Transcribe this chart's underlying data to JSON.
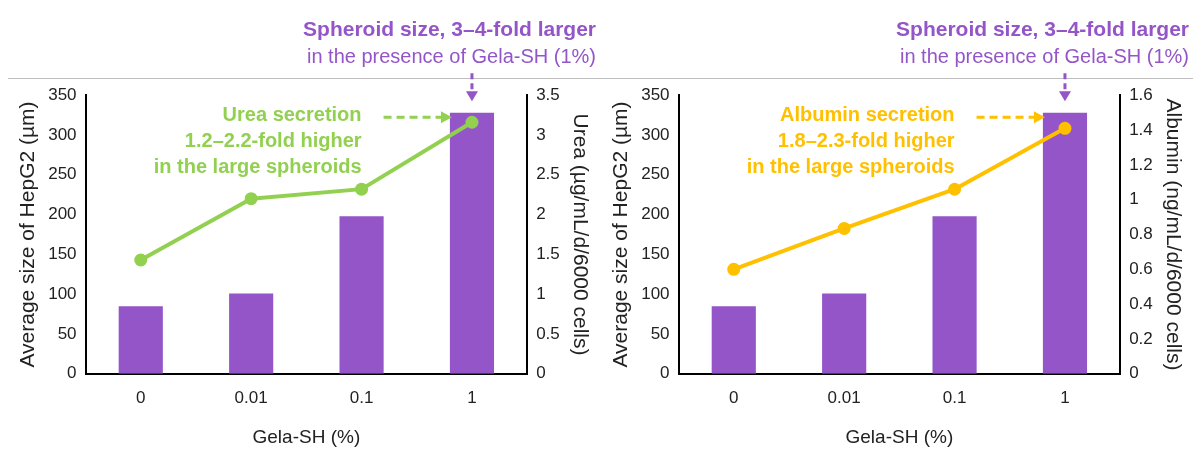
{
  "chart_data": [
    {
      "type": "bar",
      "title": "Spheroid size, 3–4-fold larger",
      "subtitle": "in the presence of Gela-SH (1%)",
      "xlabel": "Gela-SH (%)",
      "ylabel": "Average size of HepG2 (µm)",
      "y2label": "Urea (µg/mL/d/6000 cells)",
      "categories": [
        "0",
        "0.01",
        "0.1",
        "1"
      ],
      "series": [
        {
          "color": "#9455c9",
          "values": [
            85,
            101,
            198,
            328
          ]
        },
        {
          "type": "line",
          "axis": "y2",
          "color": "#92d050",
          "values": [
            1.43,
            2.2,
            2.32,
            3.16
          ]
        }
      ],
      "ylim": [
        0,
        350
      ],
      "yticks": [
        0,
        50,
        100,
        150,
        200,
        250,
        300,
        350
      ],
      "y2lim": [
        0,
        3.5
      ],
      "y2ticks": [
        0,
        0.5,
        1,
        1.5,
        2,
        2.5,
        3,
        3.5
      ],
      "marker": "circle",
      "grid": false,
      "legend": false,
      "annotations": [
        "Urea secretion\n1.2–2.2-fold higher\nin the large spheroids"
      ]
    },
    {
      "type": "bar",
      "title": "Spheroid size, 3–4-fold larger",
      "subtitle": "in the presence of Gela-SH (1%)",
      "xlabel": "Gela-SH (%)",
      "ylabel": "Average size of HepG2 (µm)",
      "y2label": "Albumin (ng/mL/d/6000 cells)",
      "categories": [
        "0",
        "0.01",
        "0.1",
        "1"
      ],
      "series": [
        {
          "color": "#9455c9",
          "values": [
            85,
            101,
            198,
            328
          ]
        },
        {
          "type": "line",
          "axis": "y2",
          "color": "#ffc000",
          "values": [
            0.6,
            0.835,
            1.06,
            1.41
          ]
        }
      ],
      "ylim": [
        0,
        350
      ],
      "yticks": [
        0,
        50,
        100,
        150,
        200,
        250,
        300,
        350
      ],
      "y2lim": [
        0,
        1.6
      ],
      "y2ticks": [
        0,
        0.2,
        0.4,
        0.6,
        0.8,
        1,
        1.2,
        1.4,
        1.6
      ],
      "marker": "circle",
      "grid": false,
      "legend": false,
      "annotations": [
        "Albumin secretion\n1.8–2.3-fold higher\nin the large spheroids"
      ]
    }
  ]
}
